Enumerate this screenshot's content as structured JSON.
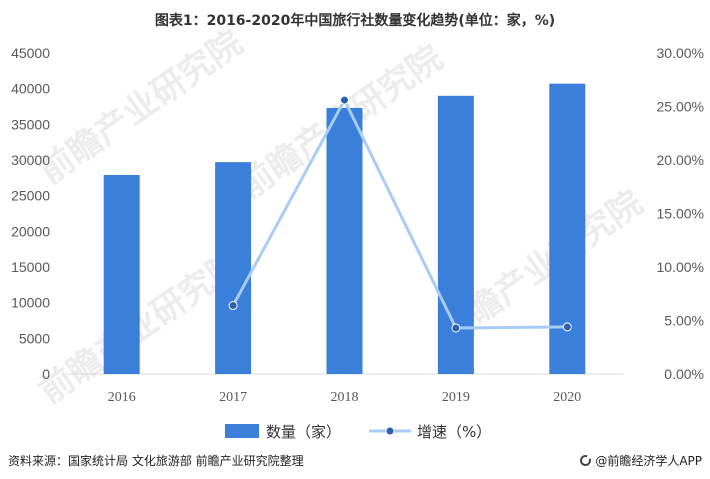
{
  "header": {
    "title": "图表1：2016-2020年中国旅行社数量变化趋势(单位：家，%)"
  },
  "footer": {
    "source": "资料来源：国家统计局 文化旅游部 前瞻产业研究院整理",
    "brand": "@前瞻经济学人APP"
  },
  "watermark": {
    "text": "前瞻产业研究院"
  },
  "chart_data": {
    "type": "bar",
    "categories": [
      "2016",
      "2017",
      "2018",
      "2019",
      "2020"
    ],
    "series": [
      {
        "name": "数量（家）",
        "type": "bar",
        "axis": "left",
        "color": "#3A7FD9",
        "values": [
          27900,
          29700,
          37300,
          39000,
          40700
        ]
      },
      {
        "name": "增速（%）",
        "type": "line",
        "axis": "right",
        "color": "#A9CCF5",
        "marker_color": "#2D5FB0",
        "values": [
          null,
          6.4,
          25.6,
          4.3,
          4.4
        ]
      }
    ],
    "left_axis": {
      "min": 0,
      "max": 45000,
      "ticks": [
        "0",
        "5000",
        "10000",
        "15000",
        "20000",
        "25000",
        "30000",
        "35000",
        "40000",
        "45000"
      ]
    },
    "right_axis": {
      "min": 0,
      "max": 30,
      "ticks": [
        "0.00%",
        "5.00%",
        "10.00%",
        "15.00%",
        "20.00%",
        "25.00%",
        "30.00%"
      ]
    },
    "legend": {
      "position": "bottom-center",
      "items": [
        "数量（家）",
        "增速（%）"
      ]
    },
    "grid": false
  }
}
